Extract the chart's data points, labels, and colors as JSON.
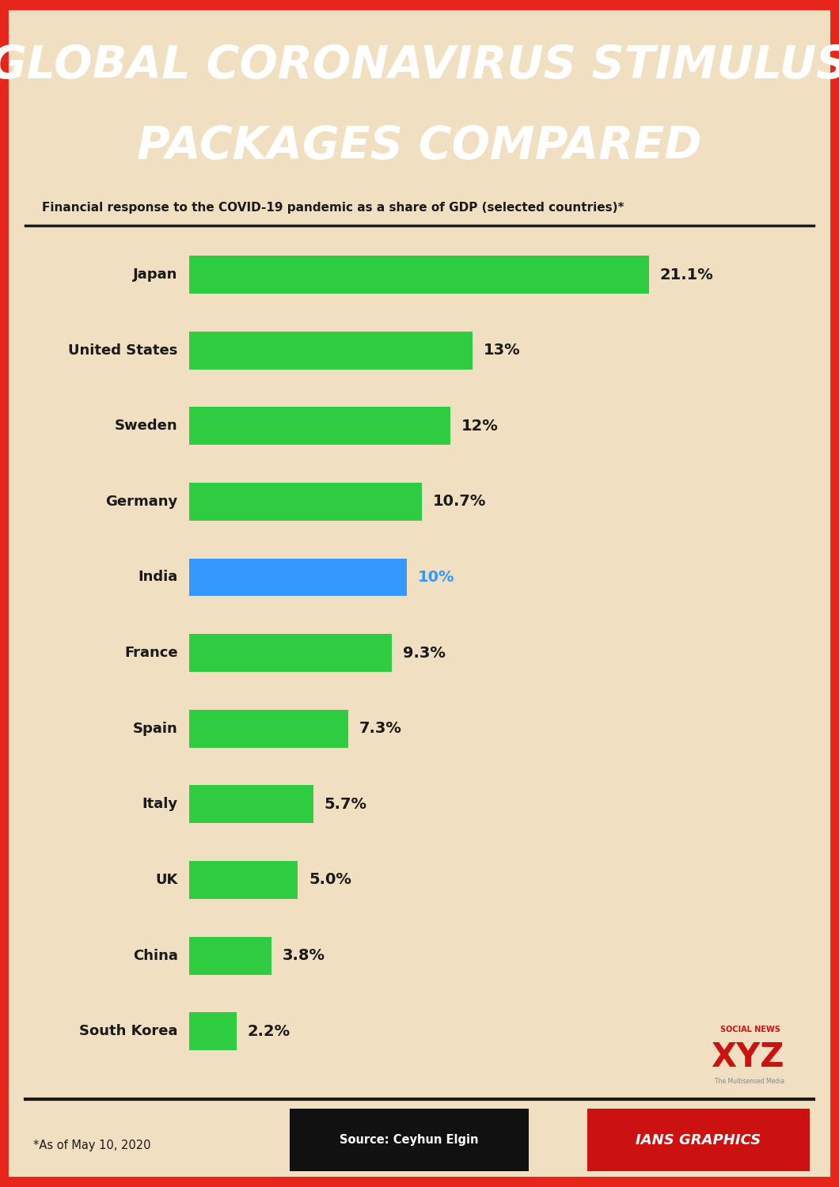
{
  "title_line1": "GLOBAL CORONAVIRUS STIMULUS",
  "title_line2": "PACKAGES COMPARED",
  "title_bg_color": "#e8251a",
  "title_text_color": "#ffffff",
  "subtitle": "Financial response to the COVID-19 pandemic as a share of GDP (selected countries)*",
  "bg_color": "#f0dfc0",
  "border_color": "#e8251a",
  "countries": [
    "Japan",
    "United States",
    "Sweden",
    "Germany",
    "India",
    "France",
    "Spain",
    "Italy",
    "UK",
    "China",
    "South Korea"
  ],
  "values": [
    21.1,
    13.0,
    12.0,
    10.7,
    10.0,
    9.3,
    7.3,
    5.7,
    5.0,
    3.8,
    2.2
  ],
  "labels": [
    "21.1%",
    "13%",
    "12%",
    "10.7%",
    "10%",
    "9.3%",
    "7.3%",
    "5.7%",
    "5.0%",
    "3.8%",
    "2.2%"
  ],
  "bar_colors": [
    "#2ecc40",
    "#2ecc40",
    "#2ecc40",
    "#2ecc40",
    "#3399ff",
    "#2ecc40",
    "#2ecc40",
    "#2ecc40",
    "#2ecc40",
    "#2ecc40",
    "#2ecc40"
  ],
  "value_colors": [
    "#1a1a1a",
    "#1a1a1a",
    "#1a1a1a",
    "#1a1a1a",
    "#3399ff",
    "#1a1a1a",
    "#1a1a1a",
    "#1a1a1a",
    "#1a1a1a",
    "#1a1a1a",
    "#1a1a1a"
  ],
  "footer_note": "*As of May 10, 2020",
  "footer_source": "Source: Ceyhun Elgin",
  "footer_brand": "IANS GRAPHICS",
  "footer_source_bg": "#111111",
  "footer_brand_bg": "#cc1111",
  "max_value": 25.0
}
